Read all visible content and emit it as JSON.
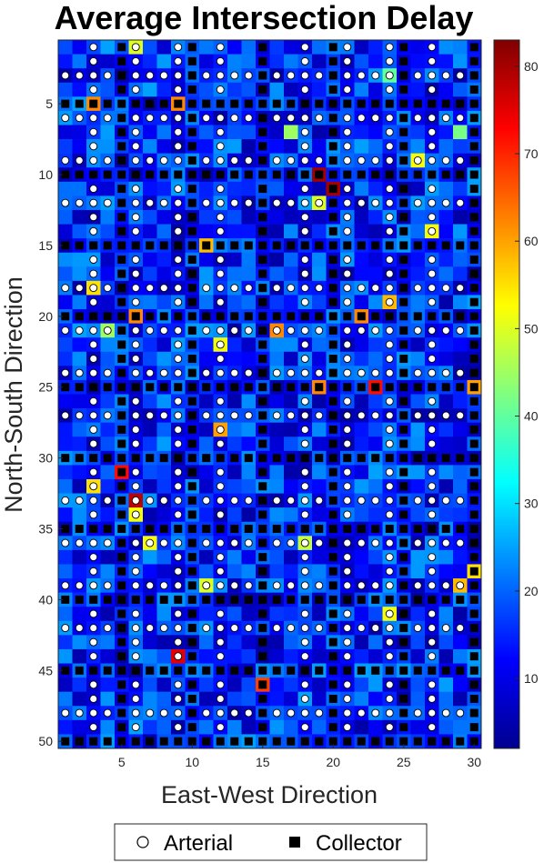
{
  "chart_data": {
    "type": "heatmap",
    "title": "Average Intersection Delay",
    "xlabel": "East-West Direction",
    "ylabel": "North-South Direction",
    "x_ticks": [
      5,
      10,
      15,
      20,
      25,
      30
    ],
    "y_ticks": [
      5,
      10,
      15,
      20,
      25,
      30,
      35,
      40,
      45,
      50
    ],
    "x_range": [
      1,
      30
    ],
    "y_range": [
      1,
      50
    ],
    "y_direction": "reversed",
    "colormap": "jet",
    "colorbar": {
      "ticks": [
        10,
        20,
        30,
        40,
        50,
        60,
        70,
        80
      ],
      "range": [
        2,
        83
      ],
      "placement": "right"
    },
    "grid": {
      "cols": 30,
      "rows": 50
    },
    "background_delay_range": [
      5,
      25
    ],
    "arterial_rows": [
      3,
      6,
      9,
      12,
      18,
      21,
      24,
      27,
      33,
      36,
      39,
      42,
      48
    ],
    "arterial_cols": [
      3,
      6,
      9,
      12,
      15,
      18,
      21,
      24,
      27
    ],
    "collector_rows": [
      5,
      10,
      15,
      20,
      25,
      30,
      35,
      40,
      45,
      50
    ],
    "collector_cols": [
      5,
      10,
      15,
      20,
      25,
      30
    ],
    "hotspots": [
      {
        "x": 6,
        "y": 1,
        "delay": 50
      },
      {
        "x": 24,
        "y": 3,
        "delay": 40
      },
      {
        "x": 3,
        "y": 5,
        "delay": 62
      },
      {
        "x": 9,
        "y": 5,
        "delay": 62
      },
      {
        "x": 26,
        "y": 9,
        "delay": 52
      },
      {
        "x": 19,
        "y": 10,
        "delay": 80
      },
      {
        "x": 20,
        "y": 11,
        "delay": 80
      },
      {
        "x": 19,
        "y": 12,
        "delay": 50
      },
      {
        "x": 27,
        "y": 14,
        "delay": 52
      },
      {
        "x": 11,
        "y": 15,
        "delay": 58
      },
      {
        "x": 3,
        "y": 18,
        "delay": 55
      },
      {
        "x": 24,
        "y": 19,
        "delay": 58
      },
      {
        "x": 6,
        "y": 20,
        "delay": 62
      },
      {
        "x": 22,
        "y": 20,
        "delay": 62
      },
      {
        "x": 12,
        "y": 22,
        "delay": 52
      },
      {
        "x": 16,
        "y": 21,
        "delay": 62
      },
      {
        "x": 19,
        "y": 25,
        "delay": 62
      },
      {
        "x": 23,
        "y": 25,
        "delay": 72
      },
      {
        "x": 30,
        "y": 25,
        "delay": 60
      },
      {
        "x": 12,
        "y": 28,
        "delay": 60
      },
      {
        "x": 5,
        "y": 31,
        "delay": 72
      },
      {
        "x": 3,
        "y": 32,
        "delay": 55
      },
      {
        "x": 6,
        "y": 33,
        "delay": 78
      },
      {
        "x": 6,
        "y": 34,
        "delay": 52
      },
      {
        "x": 7,
        "y": 36,
        "delay": 52
      },
      {
        "x": 18,
        "y": 36,
        "delay": 48
      },
      {
        "x": 11,
        "y": 39,
        "delay": 50
      },
      {
        "x": 29,
        "y": 39,
        "delay": 58
      },
      {
        "x": 24,
        "y": 41,
        "delay": 52
      },
      {
        "x": 9,
        "y": 44,
        "delay": 75
      },
      {
        "x": 15,
        "y": 46,
        "delay": 68
      },
      {
        "x": 30,
        "y": 38,
        "delay": 55
      },
      {
        "x": 17,
        "y": 7,
        "delay": 45
      },
      {
        "x": 4,
        "y": 21,
        "delay": 45
      },
      {
        "x": 29,
        "y": 7,
        "delay": 42
      }
    ],
    "legend": {
      "placement": "bottom-center",
      "entries": [
        {
          "label": "Arterial",
          "marker": "open-circle"
        },
        {
          "label": "Collector",
          "marker": "filled-square"
        }
      ]
    }
  }
}
